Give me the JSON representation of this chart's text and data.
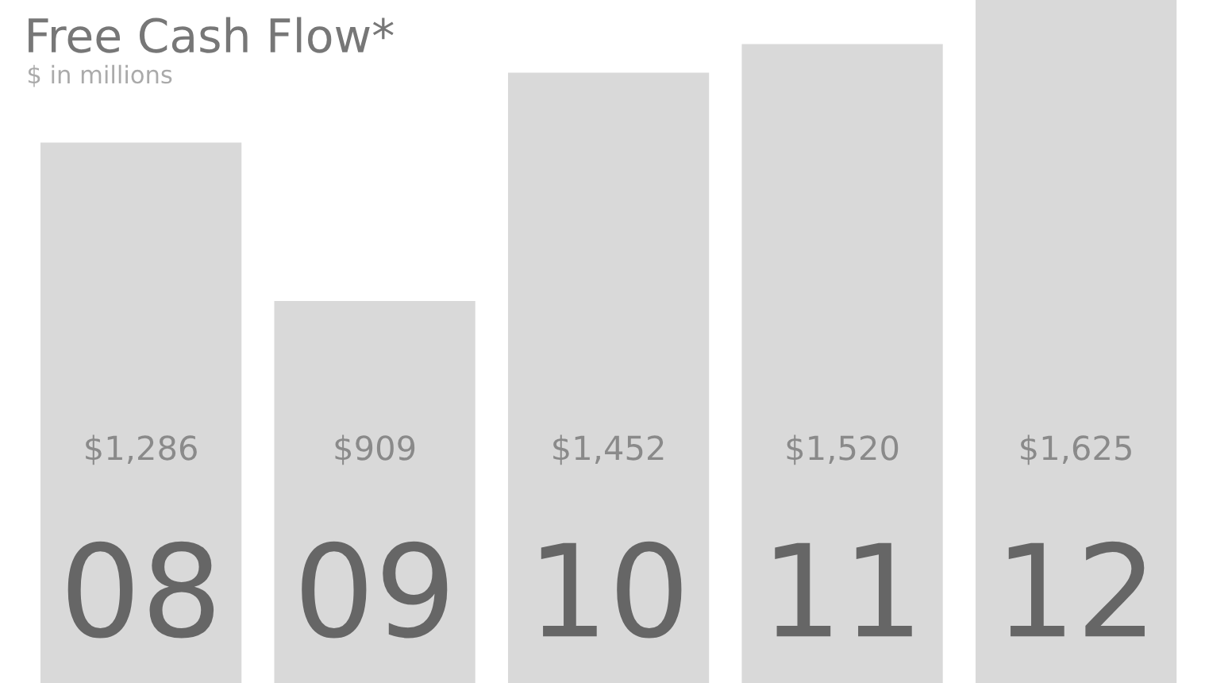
{
  "chart_data": {
    "type": "bar",
    "title": "Free Cash Flow*",
    "subtitle": "$ in millions",
    "categories": [
      "08",
      "09",
      "10",
      "11",
      "12"
    ],
    "values": [
      1286,
      909,
      1452,
      1520,
      1625
    ],
    "value_labels": [
      "$1,286",
      "$909",
      "$1,452",
      "$1,520",
      "$1,625"
    ],
    "color": "#d9d9d9"
  }
}
